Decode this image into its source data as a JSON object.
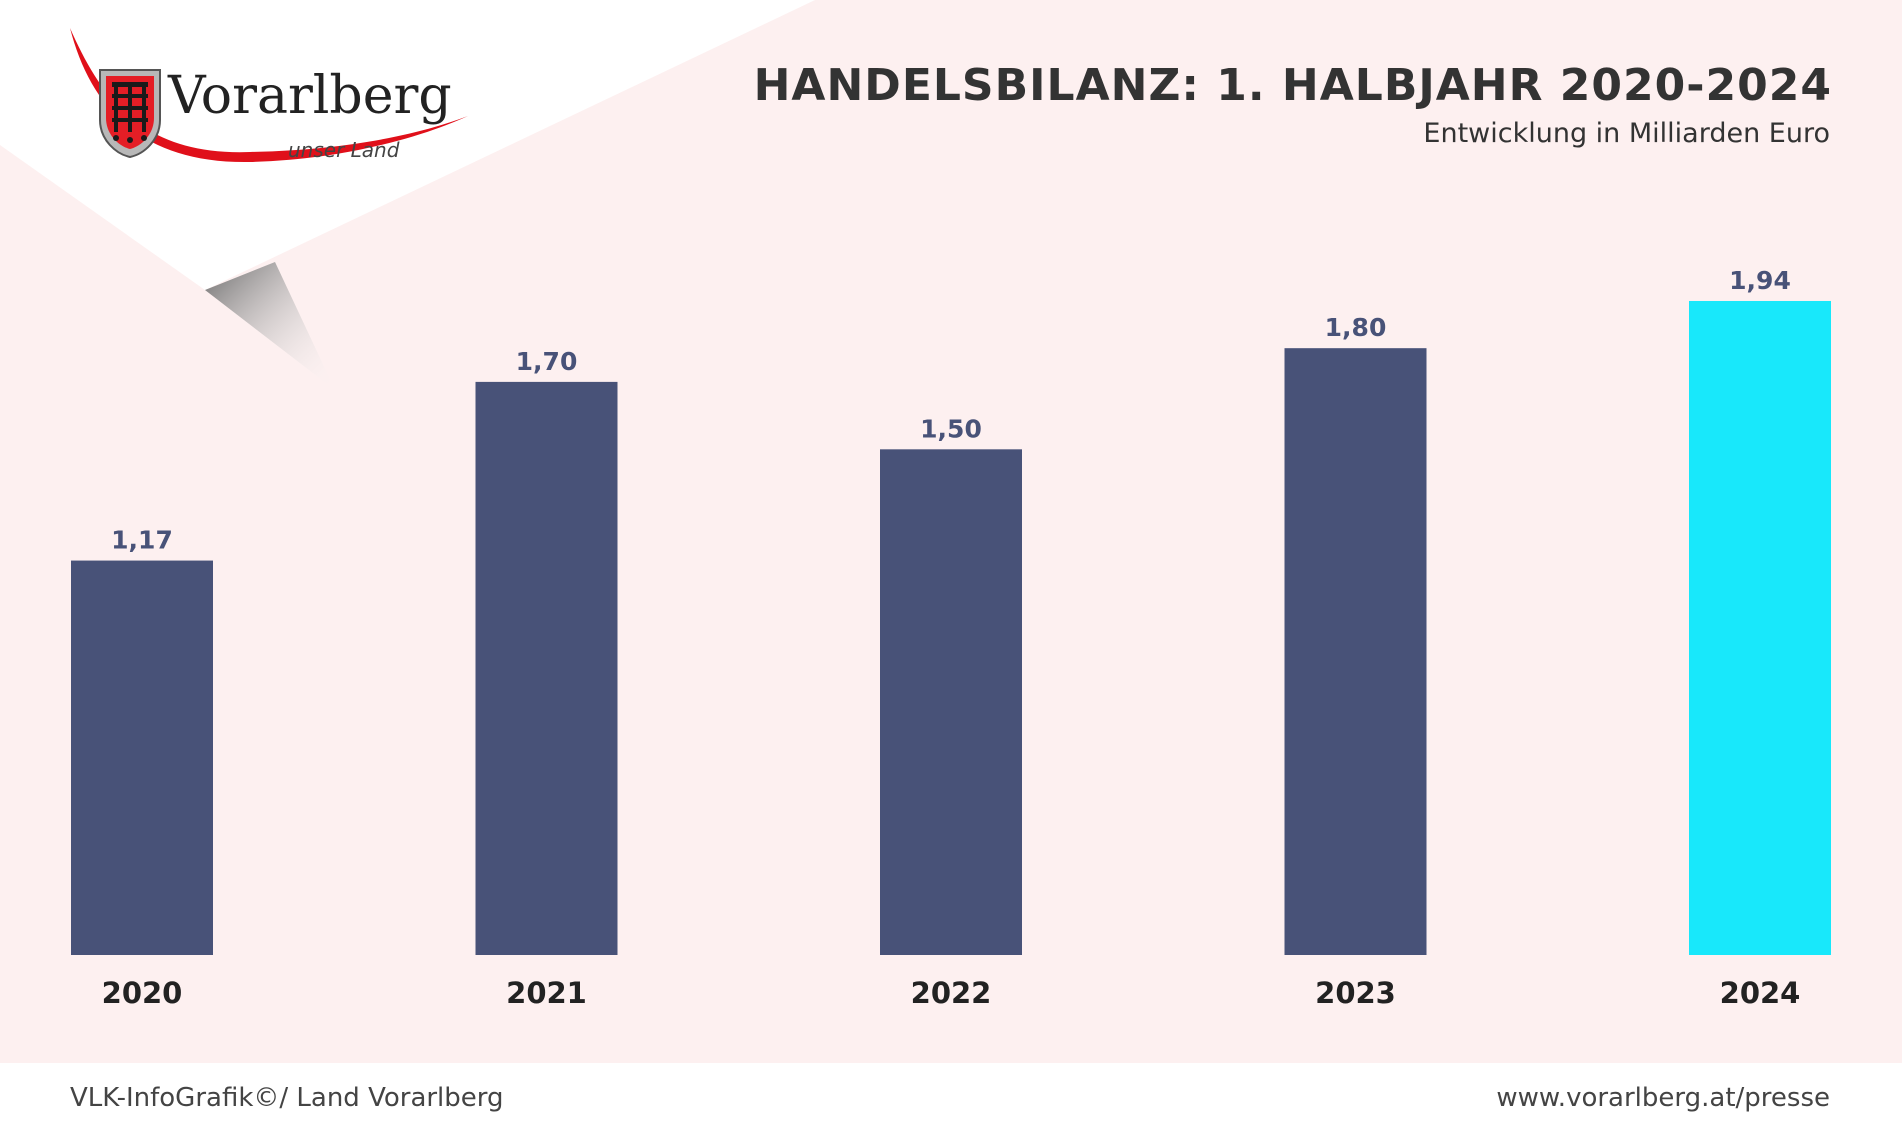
{
  "header": {
    "title": "HANDELSBILANZ: 1. HALBJAHR 2020-2024",
    "subtitle": "Entwicklung in Milliarden Euro"
  },
  "logo": {
    "name": "Vorarlberg",
    "tagline": "unser Land",
    "icon": "vorarlberg-coat-of-arms-icon"
  },
  "colors": {
    "background": "#fdf0f0",
    "bar": "#485278",
    "bar_highlight": "#18e8fb",
    "value_label": "#485278",
    "category_label": "#222222",
    "logo_swoosh": "#e0101a"
  },
  "chart_data": {
    "type": "bar",
    "categories": [
      "2020",
      "2021",
      "2022",
      "2023",
      "2024"
    ],
    "values": [
      1.17,
      1.7,
      1.5,
      1.8,
      1.94
    ],
    "value_labels": [
      "1,17",
      "1,70",
      "1,50",
      "1,80",
      "1,94"
    ],
    "highlight_index": 4,
    "ylim": [
      0,
      2.0
    ],
    "grid": false,
    "xlabel": "",
    "ylabel": ""
  },
  "footer": {
    "left": "VLK-InfoGrafik©/ Land Vorarlberg",
    "right": "www.vorarlberg.at/presse"
  }
}
